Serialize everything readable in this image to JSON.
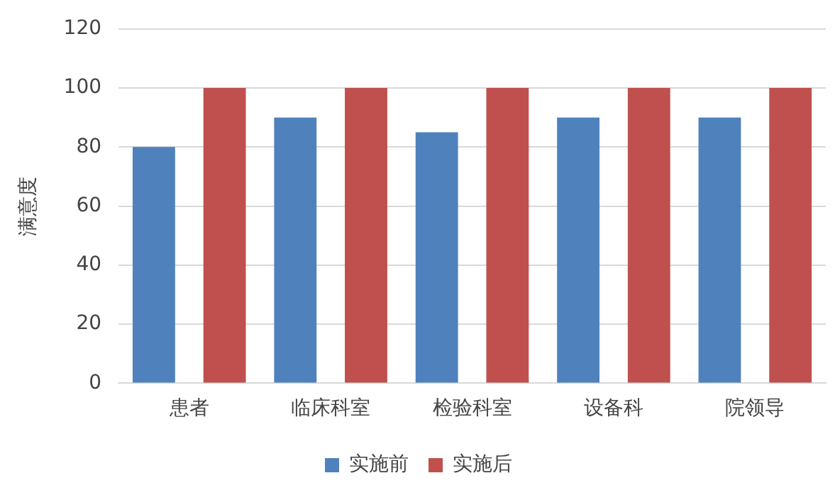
{
  "chart_data": {
    "type": "bar",
    "ylabel": "满意度",
    "categories": [
      "患者",
      "临床科室",
      "检验科室",
      "设备科",
      "院领导"
    ],
    "series": [
      {
        "name": "实施前",
        "color": "#4f81bd",
        "values": [
          80,
          90,
          85,
          90,
          90
        ]
      },
      {
        "name": "实施后",
        "color": "#c0504d",
        "values": [
          100,
          100,
          100,
          100,
          100
        ]
      }
    ],
    "ylim": [
      0,
      120
    ],
    "yticks": [
      0,
      20,
      40,
      60,
      80,
      100,
      120
    ],
    "grid": "y",
    "legend": "bottom"
  }
}
